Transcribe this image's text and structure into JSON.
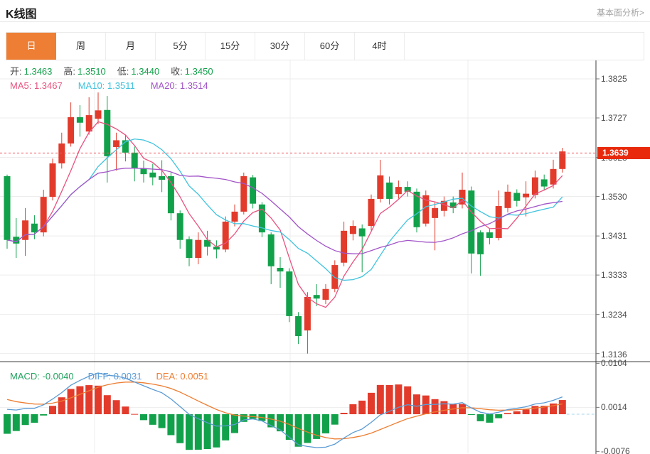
{
  "header": {
    "title": "K线图",
    "link": "基本面分析>"
  },
  "tabs": {
    "items": [
      {
        "label": "日",
        "active": true
      },
      {
        "label": "周",
        "active": false
      },
      {
        "label": "月",
        "active": false
      },
      {
        "label": "5分",
        "active": false
      },
      {
        "label": "15分",
        "active": false
      },
      {
        "label": "30分",
        "active": false
      },
      {
        "label": "60分",
        "active": false
      },
      {
        "label": "4时",
        "active": false
      }
    ]
  },
  "legend": {
    "open_label": "开:",
    "open_value": "1.3463",
    "high_label": "高:",
    "high_value": "1.3510",
    "low_label": "低:",
    "low_value": "1.3440",
    "close_label": "收:",
    "close_value": "1.3450",
    "ma5": "MA5: 1.3467",
    "ma10": "MA10: 1.3511",
    "ma20": "MA20: 1.3514",
    "macd": "MACD: -0.0040",
    "diff": "DIFF: 0.0031",
    "dea": "DEA: 0.0051"
  },
  "colors": {
    "up": "#e23b2c",
    "down": "#12a14b",
    "ma5": "#e8537f",
    "ma10": "#3ec3de",
    "ma20": "#a254c8",
    "diff_line": "#5b9bd5",
    "dea_line": "#ed7d31",
    "grid": "#ededed",
    "axis": "#3c3c3c",
    "tick": "#777777",
    "dotted_price_line": "#f2565e",
    "tag_bg": "#e8290c",
    "accent": "#ee7e33"
  },
  "chart_data": {
    "type": "candlestick",
    "title": "K线图 (日K)",
    "grid": true,
    "ylim": [
      1.3136,
      1.3825
    ],
    "y_axis_labels": [
      "1.3825",
      "1.3727",
      "1.3628",
      "1.3530",
      "1.3431",
      "1.3333",
      "1.3234",
      "1.3136"
    ],
    "y_axis_gridlines": [
      1.3825,
      1.3727,
      1.3628,
      1.353,
      1.3431,
      1.3333,
      1.3234,
      1.3136
    ],
    "current_price": "1.3639",
    "current_price_value": 1.3639,
    "overlays": [
      {
        "name": "MA5",
        "period": 5,
        "value": "1.3467"
      },
      {
        "name": "MA10",
        "period": 10,
        "value": "1.3511"
      },
      {
        "name": "MA20",
        "period": 20,
        "value": "1.3514"
      }
    ],
    "ohlc_readout": {
      "open": 1.3463,
      "high": 1.351,
      "low": 1.344,
      "close": 1.345
    },
    "candles": [
      [
        1.3581,
        1.3585,
        1.3399,
        1.3421
      ],
      [
        1.3429,
        1.3476,
        1.3376,
        1.3412
      ],
      [
        1.3421,
        1.3501,
        1.3381,
        1.347
      ],
      [
        1.3462,
        1.3483,
        1.3423,
        1.344
      ],
      [
        1.344,
        1.3547,
        1.343,
        1.3529
      ],
      [
        1.3529,
        1.3625,
        1.352,
        1.3613
      ],
      [
        1.3613,
        1.369,
        1.36,
        1.3663
      ],
      [
        1.3663,
        1.3766,
        1.3655,
        1.3729
      ],
      [
        1.3729,
        1.3759,
        1.368,
        1.3715
      ],
      [
        1.3693,
        1.3779,
        1.3685,
        1.3734
      ],
      [
        1.3725,
        1.3791,
        1.3712,
        1.3746
      ],
      [
        1.3747,
        1.3782,
        1.3565,
        1.3631
      ],
      [
        1.3654,
        1.369,
        1.3595,
        1.3671
      ],
      [
        1.3671,
        1.3684,
        1.3618,
        1.364
      ],
      [
        1.364,
        1.3655,
        1.3568,
        1.3601
      ],
      [
        1.3601,
        1.362,
        1.3565,
        1.3586
      ],
      [
        1.359,
        1.3612,
        1.3558,
        1.3578
      ],
      [
        1.3581,
        1.3621,
        1.3541,
        1.3572
      ],
      [
        1.3581,
        1.359,
        1.347,
        1.3488
      ],
      [
        1.3488,
        1.3495,
        1.3399,
        1.3421
      ],
      [
        1.3423,
        1.343,
        1.3355,
        1.3376
      ],
      [
        1.3376,
        1.344,
        1.336,
        1.3421
      ],
      [
        1.3421,
        1.3444,
        1.3382,
        1.3404
      ],
      [
        1.3404,
        1.342,
        1.3375,
        1.3397
      ],
      [
        1.3397,
        1.348,
        1.339,
        1.3467
      ],
      [
        1.3467,
        1.351,
        1.3455,
        1.3492
      ],
      [
        1.3492,
        1.359,
        1.3485,
        1.3581
      ],
      [
        1.3578,
        1.3584,
        1.35,
        1.3512
      ],
      [
        1.351,
        1.3516,
        1.3428,
        1.344
      ],
      [
        1.3435,
        1.344,
        1.331,
        1.3355
      ],
      [
        1.3351,
        1.3378,
        1.3301,
        1.3342
      ],
      [
        1.3342,
        1.335,
        1.3215,
        1.323
      ],
      [
        1.323,
        1.324,
        1.316,
        1.318
      ],
      [
        1.3194,
        1.329,
        1.3136,
        1.3278
      ],
      [
        1.3283,
        1.331,
        1.3255,
        1.3274
      ],
      [
        1.3271,
        1.331,
        1.326,
        1.3298
      ],
      [
        1.3298,
        1.337,
        1.329,
        1.3358
      ],
      [
        1.3364,
        1.3467,
        1.3355,
        1.3444
      ],
      [
        1.3436,
        1.347,
        1.342,
        1.3456
      ],
      [
        1.345,
        1.346,
        1.334,
        1.343
      ],
      [
        1.3456,
        1.3535,
        1.3445,
        1.3524
      ],
      [
        1.3524,
        1.3622,
        1.3515,
        1.3583
      ],
      [
        1.3565,
        1.358,
        1.351,
        1.3524
      ],
      [
        1.3536,
        1.357,
        1.3525,
        1.3554
      ],
      [
        1.3554,
        1.3568,
        1.353,
        1.3542
      ],
      [
        1.3542,
        1.355,
        1.344,
        1.3453
      ],
      [
        1.3462,
        1.3545,
        1.3455,
        1.3533
      ],
      [
        1.3476,
        1.3515,
        1.3395,
        1.3501
      ],
      [
        1.3494,
        1.353,
        1.348,
        1.3519
      ],
      [
        1.3515,
        1.353,
        1.3488,
        1.3501
      ],
      [
        1.351,
        1.359,
        1.35,
        1.3547
      ],
      [
        1.3545,
        1.3555,
        1.3337,
        1.3387
      ],
      [
        1.344,
        1.3445,
        1.3331,
        1.3385
      ],
      [
        1.344,
        1.3448,
        1.341,
        1.3426
      ],
      [
        1.3426,
        1.3545,
        1.342,
        1.3506
      ],
      [
        1.3501,
        1.356,
        1.349,
        1.3542
      ],
      [
        1.3539,
        1.3548,
        1.3505,
        1.3519
      ],
      [
        1.3528,
        1.3568,
        1.348,
        1.3537
      ],
      [
        1.3534,
        1.3595,
        1.3525,
        1.3578
      ],
      [
        1.3573,
        1.3585,
        1.3545,
        1.3555
      ],
      [
        1.356,
        1.3622,
        1.355,
        1.3599
      ],
      [
        1.3599,
        1.3652,
        1.359,
        1.3643
      ]
    ],
    "indicator_pane": {
      "name": "MACD",
      "macd": "-0.0040",
      "diff": "0.0031",
      "dea": "0.0051",
      "ylim": [
        -0.0076,
        0.0104
      ],
      "axis_labels": [
        "0.0104",
        "0.0014",
        "-0.0076"
      ],
      "axis_values": [
        0.0104,
        0.0014,
        -0.0076
      ]
    }
  }
}
